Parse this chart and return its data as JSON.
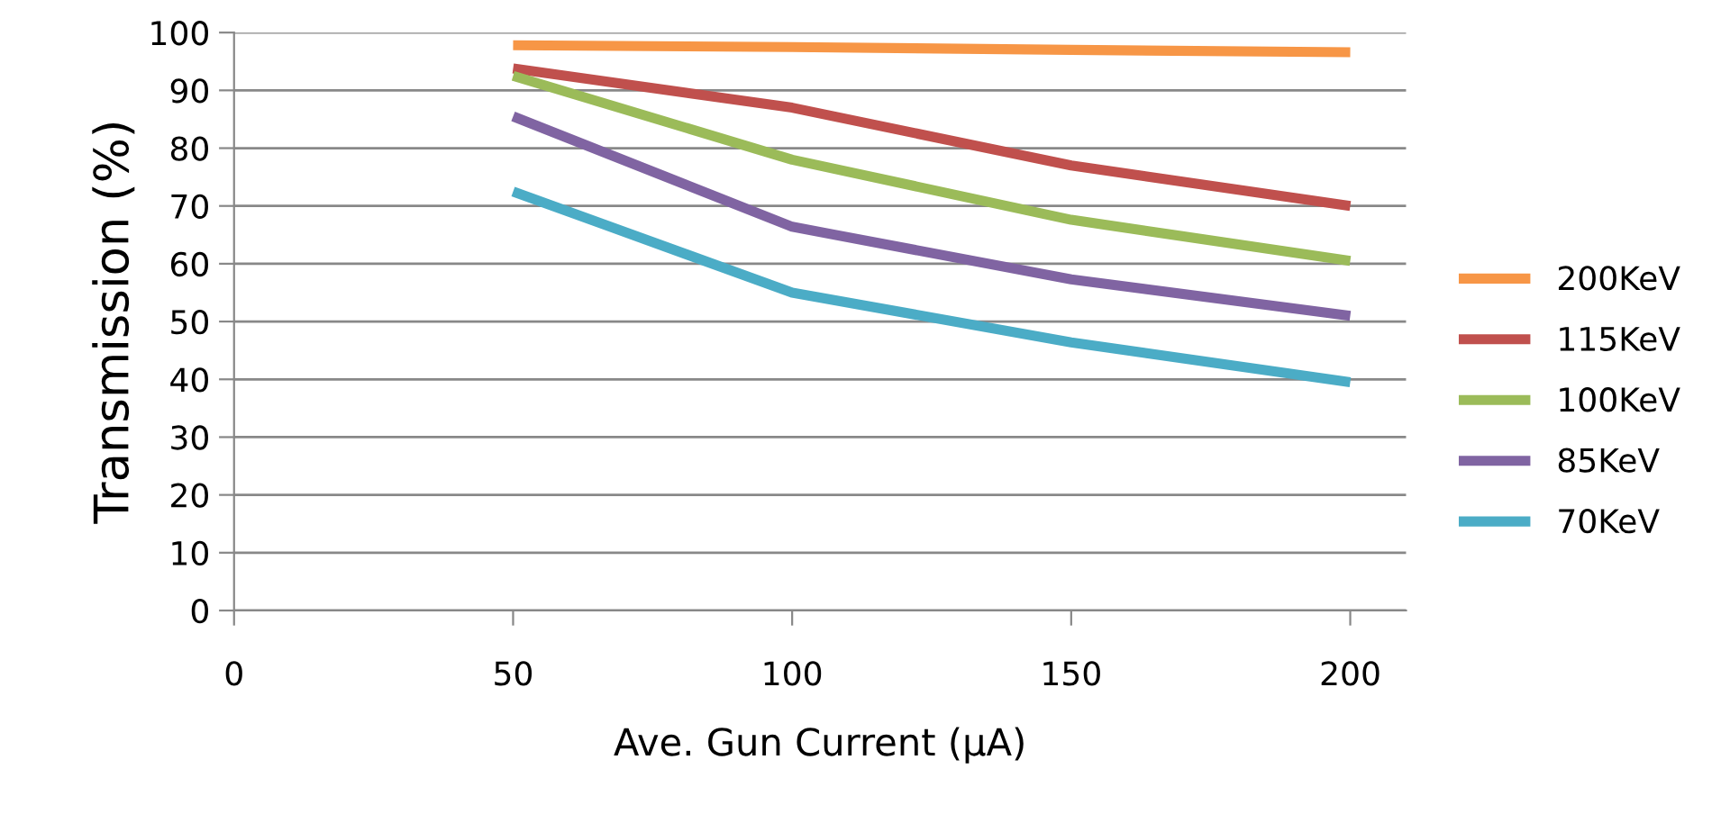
{
  "chart_data": {
    "type": "line",
    "xlabel": "Ave. Gun Current (µA)",
    "ylabel": "Transmission (%)",
    "x": [
      50,
      100,
      150,
      200
    ],
    "series": [
      {
        "name": "200KeV",
        "color": "#f79646",
        "values": [
          97.8,
          97.5,
          97,
          96.6
        ]
      },
      {
        "name": "115KeV",
        "color": "#c0504d",
        "values": [
          93.8,
          87,
          77,
          70
        ]
      },
      {
        "name": "100KeV",
        "color": "#9bbb59",
        "values": [
          92.5,
          78,
          67.6,
          60.5
        ]
      },
      {
        "name": "85KeV",
        "color": "#8064a2",
        "values": [
          85.5,
          66.4,
          57.3,
          51
        ]
      },
      {
        "name": "70KeV",
        "color": "#4bacc6",
        "values": [
          72.5,
          55,
          46.4,
          39.5
        ]
      }
    ],
    "xlim": [
      0,
      210
    ],
    "xticks": [
      0,
      50,
      100,
      150,
      200
    ],
    "ylim": [
      0,
      100
    ],
    "yticks": [
      0,
      10,
      20,
      30,
      40,
      50,
      60,
      70,
      80,
      90,
      100
    ],
    "grid": "y",
    "legend": "right",
    "marker": "none",
    "line_style": "solid"
  }
}
